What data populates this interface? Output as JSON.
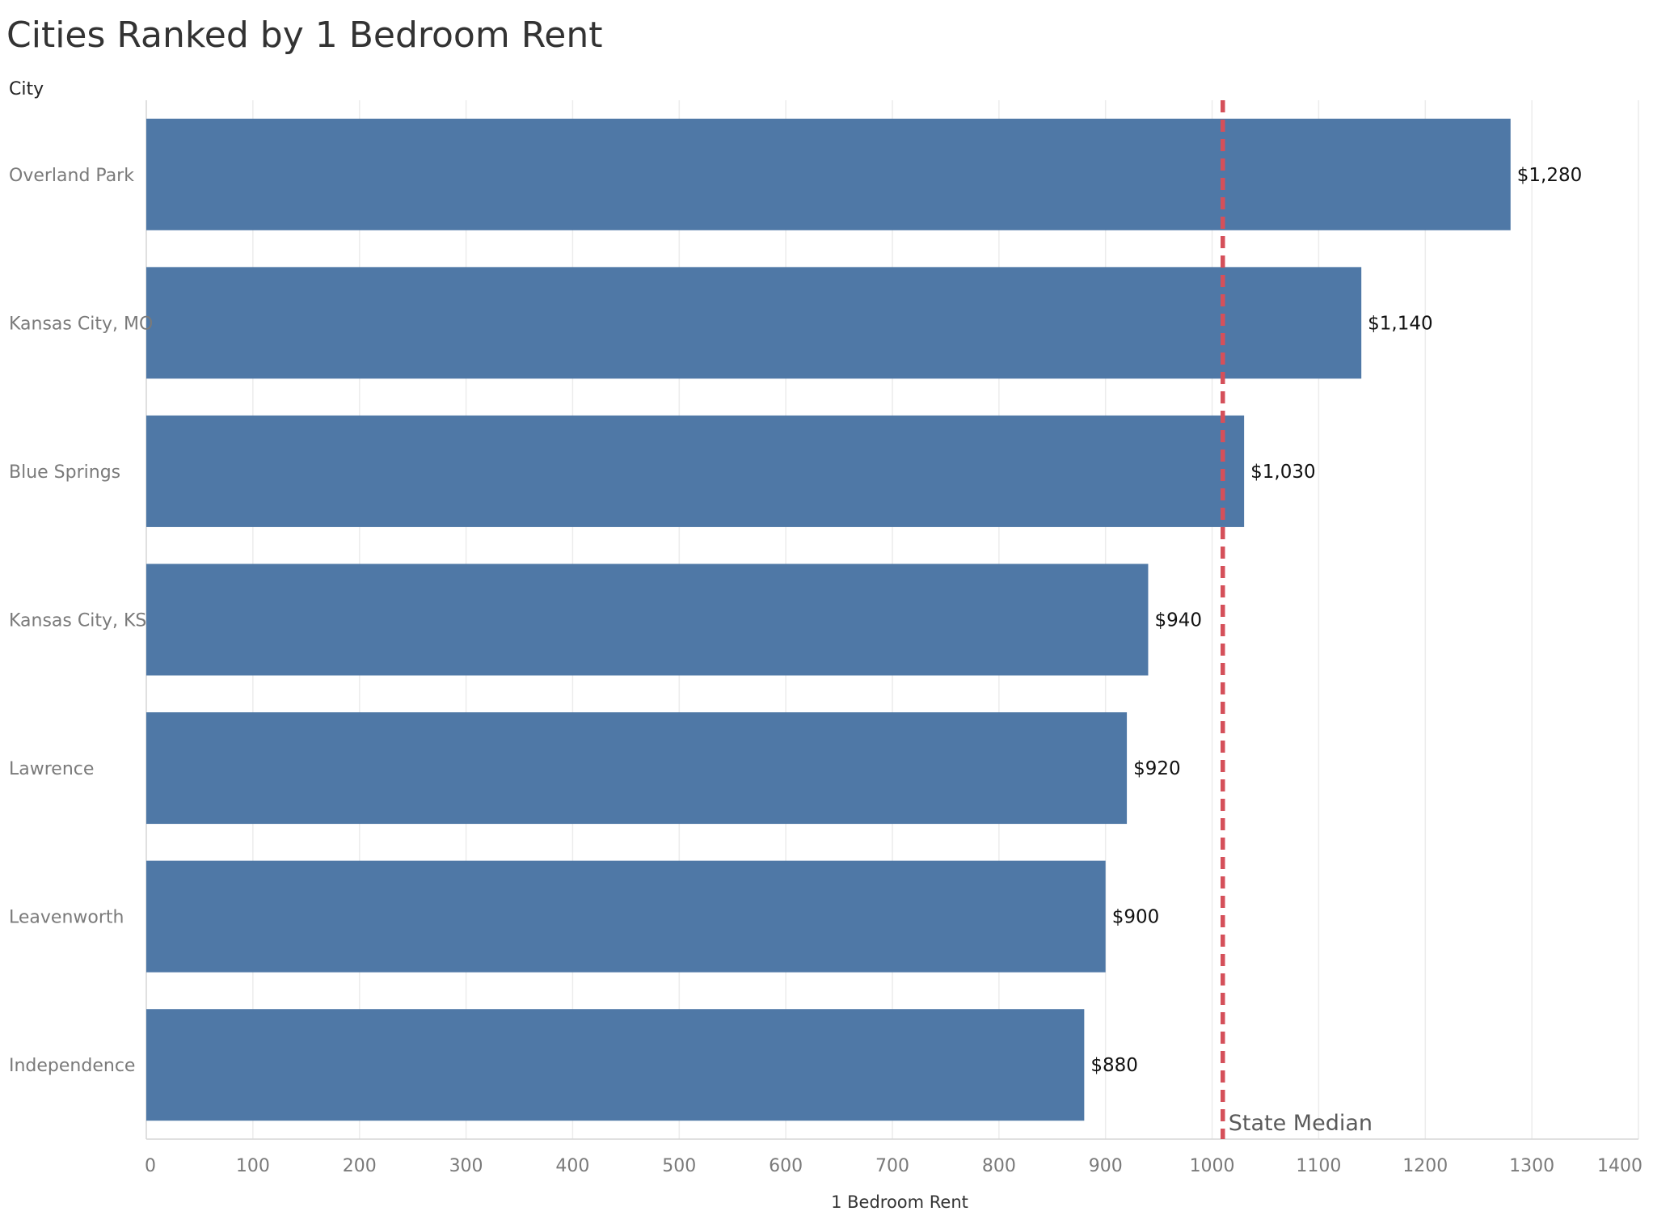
{
  "chart_data": {
    "type": "bar",
    "orientation": "horizontal",
    "title": "Cities Ranked by 1 Bedroom Rent",
    "ylabel": "City",
    "xlabel": "1 Bedroom Rent",
    "categories": [
      "Overland Park",
      "Kansas City, MO",
      "Blue Springs",
      "Kansas City, KS",
      "Lawrence",
      "Leavenworth",
      "Independence"
    ],
    "values": [
      1280,
      1140,
      1030,
      940,
      920,
      900,
      880
    ],
    "data_labels": [
      "$1,280",
      "$1,140",
      "$1,030",
      "$940",
      "$920",
      "$900",
      "$880"
    ],
    "xlim": [
      0,
      1400
    ],
    "xticks": [
      0,
      100,
      200,
      300,
      400,
      500,
      600,
      700,
      800,
      900,
      1000,
      1100,
      1200,
      1300,
      1400
    ],
    "grid": "vertical",
    "reference_line": {
      "label": "State Median",
      "value": 1010,
      "style": "dashed"
    }
  },
  "colors": {
    "bar": "#4f78a6",
    "reference_line": "#d5505a",
    "grid": "#ececec",
    "axis": "#d6d6d6"
  }
}
